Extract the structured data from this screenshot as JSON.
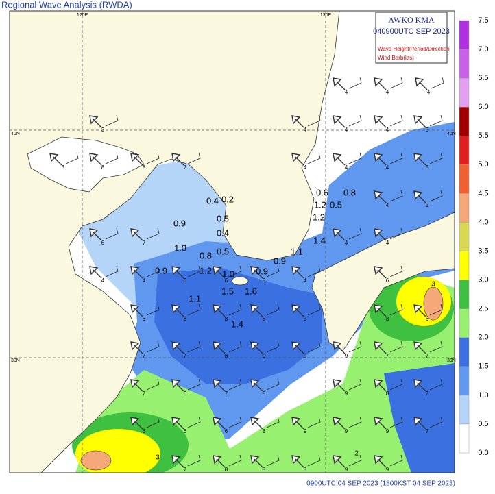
{
  "header": {
    "title": "Regional Wave Analysis (RWDA)"
  },
  "map": {
    "lon_labels": [
      "120E",
      "130E"
    ],
    "lat_labels": [
      "40N",
      "30N"
    ],
    "legend": {
      "agency": "AWKO  KMA",
      "time": "040900UTC SEP 2023",
      "line1": "Wave Height/Period/Direction",
      "line2": "Wind Barb(kts)"
    },
    "height_labels": [
      "0.6",
      "0.8",
      "1.2",
      "0.5",
      "1.2",
      "0.4",
      "0.2",
      "0.5",
      "0.9",
      "0.4",
      "1.0",
      "0.5",
      "0.8",
      "1.4",
      "1.1",
      "0.9",
      "0.9",
      "1.2",
      "1.0",
      "0.9",
      "1.5",
      "1.6",
      "1.1",
      "1.4"
    ],
    "period_labels": [
      "4",
      "4",
      "4",
      "3",
      "4",
      "4",
      "4",
      "5",
      "3",
      "8",
      "8",
      "7",
      "4",
      "4",
      "4",
      "5",
      "4",
      "5",
      "6",
      "7",
      "4",
      "4",
      "4",
      "4",
      "6",
      "6",
      "5",
      "4",
      "6",
      "6",
      "8",
      "8",
      "6",
      "5",
      "8",
      "6",
      "7",
      "7",
      "8",
      "9",
      "9",
      "9",
      "7",
      "7",
      "7",
      "6",
      "7",
      "8",
      "9",
      "8",
      "7",
      "6",
      "6",
      "6",
      "8",
      "9",
      "9",
      "9",
      "7",
      "7",
      "8",
      "8",
      "8",
      "9",
      "9"
    ],
    "contour_labels": [
      "3",
      "2",
      "3"
    ]
  },
  "colorbar": {
    "labels": [
      "7.5",
      "7.0",
      "6.5",
      "6.0",
      "5.5",
      "5.0",
      "4.5",
      "4.0",
      "3.5",
      "3.0",
      "2.5",
      "2.0",
      "1.5",
      "1.0",
      "0.5",
      "0.0"
    ],
    "colors": [
      "#b030e0",
      "#c860e8",
      "#e4a0f0",
      "#a00000",
      "#e02020",
      "#f06030",
      "#f5a878",
      "#d8d850",
      "#ffff00",
      "#40c040",
      "#98f070",
      "#3a70e0",
      "#6098f0",
      "#b4d4f8",
      "#ffffff"
    ]
  },
  "footer": {
    "time": "0900UTC 04 SEP 2023 (1800KST 04 SEP 2023)"
  }
}
